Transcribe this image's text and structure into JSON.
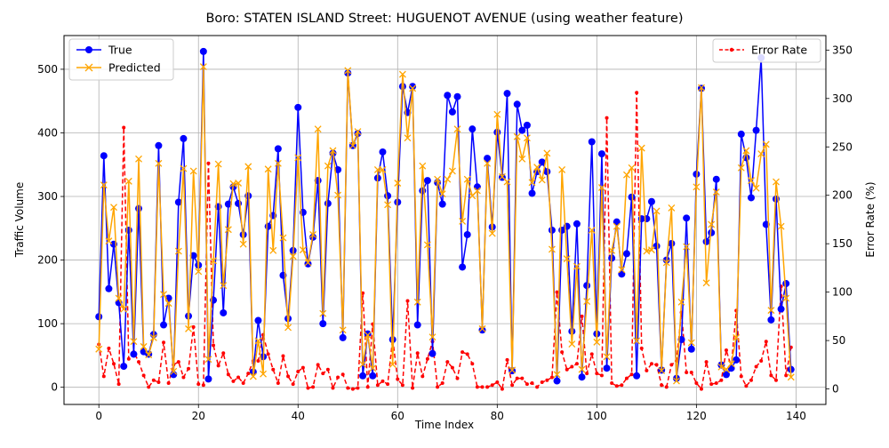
{
  "chart_data": {
    "type": "line",
    "title": "Boro: STATEN ISLAND Street: HUGUENOT AVENUE (using weather feature)",
    "xlabel": "Time Index",
    "ylabel": "Traffic Volume",
    "y2label": "Error Rate (%)",
    "xlim": [
      -7,
      146
    ],
    "ylim": [
      -27,
      553
    ],
    "y2lim": [
      -16,
      365
    ],
    "xticks": [
      0,
      20,
      40,
      60,
      80,
      100,
      120,
      140
    ],
    "yticks": [
      0,
      100,
      200,
      300,
      400,
      500
    ],
    "y2ticks": [
      0,
      50,
      100,
      150,
      200,
      250,
      300,
      350
    ],
    "grid": true,
    "legend_left_placement": "upper-left",
    "legend_right_placement": "upper-right",
    "series": [
      {
        "name": "True",
        "axis": "left",
        "color": "#0000ff",
        "marker": "circle",
        "values": [
          111,
          364,
          155,
          225,
          133,
          33,
          247,
          52,
          281,
          56,
          52,
          83,
          380,
          98,
          140,
          20,
          291,
          391,
          112,
          207,
          192,
          528,
          13,
          137,
          284,
          117,
          288,
          315,
          289,
          240,
          301,
          24,
          105,
          48,
          253,
          270,
          375,
          176,
          108,
          215,
          440,
          275,
          194,
          236,
          325,
          100,
          289,
          368,
          342,
          78,
          494,
          380,
          399,
          18,
          84,
          18,
          329,
          370,
          301,
          75,
          291,
          473,
          432,
          473,
          98,
          309,
          325,
          53,
          322,
          288,
          459,
          433,
          457,
          189,
          240,
          406,
          315,
          90,
          360,
          252,
          401,
          330,
          462,
          26,
          445,
          404,
          412,
          305,
          339,
          354,
          339,
          247,
          10,
          247,
          253,
          88,
          257,
          16,
          160,
          386,
          84,
          367,
          30,
          203,
          260,
          178,
          210,
          299,
          18,
          265,
          265,
          292,
          222,
          27,
          200,
          226,
          14,
          75,
          266,
          60,
          335,
          470,
          229,
          243,
          327,
          35,
          20,
          30,
          43,
          398,
          361,
          298,
          404,
          518,
          256,
          106,
          296,
          123,
          163,
          28
        ]
      },
      {
        "name": "Predicted",
        "axis": "left",
        "color": "#ffa500",
        "marker": "x",
        "values": [
          60,
          318,
          230,
          283,
          140,
          123,
          324,
          72,
          359,
          64,
          51,
          78,
          352,
          146,
          132,
          25,
          214,
          344,
          92,
          340,
          182,
          504,
          44,
          199,
          351,
          160,
          248,
          320,
          321,
          225,
          347,
          17,
          73,
          21,
          343,
          215,
          352,
          235,
          94,
          206,
          361,
          216,
          196,
          240,
          406,
          116,
          348,
          372,
          302,
          90,
          498,
          380,
          402,
          36,
          82,
          30,
          342,
          342,
          287,
          36,
          321,
          492,
          392,
          470,
          134,
          348,
          224,
          79,
          327,
          304,
          327,
          340,
          406,
          261,
          327,
          301,
          309,
          92,
          352,
          242,
          429,
          331,
          323,
          27,
          394,
          359,
          392,
          322,
          346,
          326,
          368,
          217,
          20,
          342,
          202,
          68,
          190,
          28,
          135,
          247,
          71,
          314,
          48,
          215,
          253,
          185,
          334,
          345,
          73,
          376,
          214,
          216,
          277,
          26,
          196,
          282,
          10,
          134,
          221,
          70,
          315,
          471,
          164,
          256,
          307,
          32,
          28,
          37,
          78,
          345,
          372,
          325,
          313,
          367,
          382,
          121,
          323,
          253,
          140,
          16
        ]
      },
      {
        "name": "Error Rate",
        "axis": "right",
        "color": "#ff0000",
        "marker": "dot",
        "dashed": true,
        "values": [
          46,
          13,
          42,
          26,
          5,
          270,
          31,
          38,
          28,
          14,
          2,
          9,
          7,
          48,
          6,
          25,
          28,
          12,
          21,
          64,
          5,
          4,
          233,
          45,
          24,
          37,
          15,
          8,
          12,
          6,
          16,
          29,
          29,
          56,
          36,
          20,
          6,
          34,
          13,
          5,
          18,
          22,
          1,
          2,
          25,
          16,
          20,
          1,
          12,
          15,
          1,
          0,
          1,
          99,
          2,
          67,
          4,
          8,
          5,
          52,
          10,
          4,
          91,
          1,
          37,
          13,
          31,
          49,
          2,
          6,
          28,
          22,
          11,
          38,
          36,
          26,
          2,
          2,
          2,
          4,
          7,
          0,
          30,
          4,
          11,
          11,
          5,
          6,
          2,
          7,
          9,
          12,
          100,
          38,
          20,
          23,
          26,
          75,
          16,
          36,
          16,
          14,
          280,
          6,
          3,
          4,
          11,
          15,
          306,
          42,
          19,
          26,
          25,
          4,
          2,
          25,
          29,
          79,
          17,
          17,
          6,
          0,
          28,
          5,
          6,
          9,
          40,
          23,
          81,
          13,
          3,
          9,
          23,
          29,
          49,
          14,
          9,
          106,
          14,
          43
        ]
      }
    ]
  }
}
